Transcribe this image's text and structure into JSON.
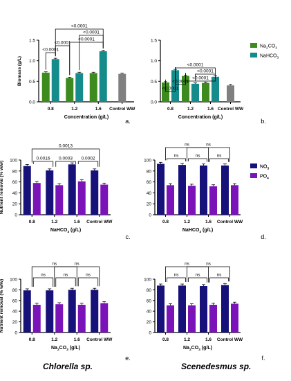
{
  "figure": {
    "bottom_left_label": "Chlorella sp.",
    "bottom_right_label": "Scenedesmus sp."
  },
  "chart_data": [
    {
      "panel": "a.",
      "type": "bar",
      "categories": [
        "0.8",
        "1.2",
        "1.6",
        "Control WW"
      ],
      "ylabel": "Biomass (g/L)",
      "xlabel": "Concentration (g/L)",
      "ylim": [
        0,
        1.5
      ],
      "yticks": [
        "0.0",
        "0.5",
        "1.0",
        "1.5"
      ],
      "series": [
        {
          "name": "Na2CO3",
          "color": "#3d8b1f",
          "values": [
            0.71,
            0.58,
            0.7,
            null
          ]
        },
        {
          "name": "NaHCO3",
          "color": "#168b8b",
          "values": [
            1.04,
            0.7,
            1.23,
            null
          ]
        },
        {
          "name": "",
          "color": "#808080",
          "values": [
            null,
            null,
            null,
            0.68
          ]
        }
      ],
      "brackets": [
        {
          "label": "<0.0001",
          "from": [
            0,
            0
          ],
          "to": [
            0,
            1
          ]
        },
        {
          "label": "<0.0001",
          "from": [
            0,
            1
          ],
          "to": [
            1,
            0
          ]
        },
        {
          "label": "<0.0001",
          "from": [
            0,
            1
          ],
          "to": [
            2,
            1
          ]
        },
        {
          "label": "<0.0001",
          "from": [
            1,
            0
          ],
          "to": [
            2,
            1
          ]
        },
        {
          "label": "<0.0001",
          "from": [
            1,
            1
          ],
          "to": [
            2,
            1
          ]
        }
      ]
    },
    {
      "panel": "b.",
      "type": "bar",
      "categories": [
        "0.8",
        "1.2",
        "1.6",
        "Control WW"
      ],
      "ylabel": "",
      "xlabel": "Concentration (g/L)",
      "ylim": [
        0,
        1.5
      ],
      "yticks": [
        "0.0",
        "0.5",
        "1.0",
        "1.5"
      ],
      "legend": [
        {
          "main": "Na",
          "sub1": "2",
          "mid": "CO",
          "sub2": "3",
          "color": "#3d8b1f"
        },
        {
          "main": "NaHCO",
          "sub1": "3",
          "mid": "",
          "sub2": "",
          "color": "#168b8b"
        }
      ],
      "series": [
        {
          "name": "Na2CO3",
          "color": "#3d8b1f",
          "values": [
            0.47,
            0.63,
            0.46,
            null
          ]
        },
        {
          "name": "NaHCO3",
          "color": "#168b8b",
          "values": [
            0.77,
            0.44,
            0.61,
            null
          ]
        },
        {
          "name": "",
          "color": "#808080",
          "values": [
            null,
            null,
            null,
            0.4
          ]
        }
      ],
      "brackets": [
        {
          "label": "<0.0001",
          "from": [
            0,
            0
          ],
          "to": [
            0,
            1
          ]
        },
        {
          "label": "<0.0001",
          "from": [
            0,
            1
          ],
          "to": [
            1,
            0
          ]
        },
        {
          "label": "<0.0001",
          "from": [
            0,
            1
          ],
          "to": [
            2,
            1
          ]
        },
        {
          "label": "<0.0001",
          "from": [
            1,
            0
          ],
          "to": [
            2,
            1
          ]
        },
        {
          "label": "<0.0001",
          "from": [
            1,
            1
          ],
          "to": [
            2,
            1
          ]
        }
      ]
    },
    {
      "panel": "c.",
      "type": "bar",
      "categories": [
        "0.8",
        "1.2",
        "1.6",
        "Control WW"
      ],
      "ylabel": "Nutrient removal (% w/w)",
      "xlabel_main": "NaHCO",
      "xlabel_sub": "3",
      "xlabel_tail": " (g/L)",
      "ylim": [
        0,
        100
      ],
      "yticks": [
        "0",
        "20",
        "40",
        "60",
        "80",
        "100"
      ],
      "series": [
        {
          "name": "NO3",
          "color": "#17127a",
          "values": [
            89,
            81,
            92,
            81
          ]
        },
        {
          "name": "PO4",
          "color": "#7b14b8",
          "values": [
            58,
            54,
            61,
            55
          ]
        }
      ],
      "brackets": [
        {
          "label": "0.0016",
          "from": 0,
          "to": 1
        },
        {
          "label": "0.0003",
          "from": 1,
          "to": 2
        },
        {
          "label": "0.0002",
          "from": 2,
          "to": 3
        },
        {
          "label": "0.0013",
          "from": 0,
          "to": 3
        }
      ]
    },
    {
      "panel": "d.",
      "type": "bar",
      "categories": [
        "0.8",
        "1.2",
        "1.6",
        "Control WW"
      ],
      "ylabel": "",
      "xlabel_main": "NaHCO",
      "xlabel_sub": "3",
      "xlabel_tail": " (g/L)",
      "ylim": [
        0,
        100
      ],
      "yticks": [
        "0",
        "20",
        "40",
        "60",
        "80",
        "100"
      ],
      "legend": [
        {
          "main": "NO",
          "sub1": "3",
          "mid": "",
          "sub2": "",
          "color": "#17127a"
        },
        {
          "main": "PO",
          "sub1": "4",
          "mid": "",
          "sub2": "",
          "color": "#7b14b8"
        }
      ],
      "series": [
        {
          "name": "NO3",
          "color": "#17127a",
          "values": [
            93,
            91,
            90,
            90
          ]
        },
        {
          "name": "PO4",
          "color": "#7b14b8",
          "values": [
            54,
            53,
            52,
            54
          ]
        }
      ],
      "brackets": [
        {
          "label": "ns",
          "from": 0,
          "to": 1
        },
        {
          "label": "ns",
          "from": 1,
          "to": 2
        },
        {
          "label": "ns",
          "from": 2,
          "to": 3
        },
        {
          "label": "ns",
          "from": 0,
          "to": 2
        },
        {
          "label": "ns",
          "from": 1,
          "to": 3
        }
      ]
    },
    {
      "panel": "e.",
      "type": "bar",
      "categories": [
        "0.8",
        "1.2",
        "1.6",
        "Control WW"
      ],
      "ylabel": "Nutrient removal (% w/w)",
      "xlabel_main": "Na",
      "xlabel_sub": "2",
      "xlabel_mid": "CO",
      "xlabel_sub2": "3",
      "xlabel_tail": " (g/L)",
      "ylim": [
        0,
        100
      ],
      "yticks": [
        "0",
        "20",
        "40",
        "60",
        "80",
        "100"
      ],
      "series": [
        {
          "name": "NO3",
          "color": "#17127a",
          "values": [
            79,
            79,
            80,
            80
          ]
        },
        {
          "name": "PO4",
          "color": "#7b14b8",
          "values": [
            52,
            53,
            52,
            55
          ]
        }
      ],
      "brackets": [
        {
          "label": "ns",
          "from": 0,
          "to": 1
        },
        {
          "label": "ns",
          "from": 1,
          "to": 2
        },
        {
          "label": "ns",
          "from": 2,
          "to": 3
        },
        {
          "label": "ns",
          "from": 0,
          "to": 2
        },
        {
          "label": "ns",
          "from": 1,
          "to": 3
        }
      ]
    },
    {
      "panel": "f.",
      "type": "bar",
      "categories": [
        "0.8",
        "1.2",
        "1.6",
        "Control WW"
      ],
      "ylabel": "",
      "xlabel_main": "Na",
      "xlabel_sub": "2",
      "xlabel_mid": "CO",
      "xlabel_sub2": "3",
      "xlabel_tail": " (g/L)",
      "ylim": [
        0,
        100
      ],
      "yticks": [
        "0",
        "20",
        "40",
        "60",
        "80",
        "100"
      ],
      "legend": [
        {
          "main": "NO",
          "sub1": "3",
          "mid": "",
          "sub2": "",
          "color": "#17127a"
        },
        {
          "main": "PO",
          "sub1": "4",
          "mid": "",
          "sub2": "",
          "color": "#7b14b8"
        }
      ],
      "series": [
        {
          "name": "NO3",
          "color": "#17127a",
          "values": [
            88,
            88,
            87,
            89
          ]
        },
        {
          "name": "PO4",
          "color": "#7b14b8",
          "values": [
            51,
            51,
            52,
            54
          ]
        }
      ],
      "brackets": [
        {
          "label": "ns",
          "from": 0,
          "to": 1
        },
        {
          "label": "ns",
          "from": 1,
          "to": 2
        },
        {
          "label": "ns",
          "from": 2,
          "to": 3
        },
        {
          "label": "ns",
          "from": 0,
          "to": 2
        },
        {
          "label": "ns",
          "from": 1,
          "to": 3
        }
      ]
    }
  ]
}
